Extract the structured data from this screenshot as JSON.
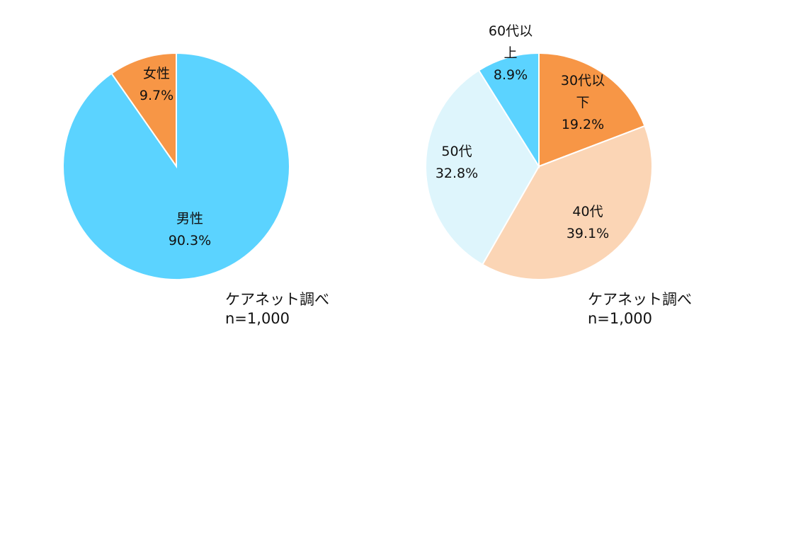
{
  "chart_data": [
    {
      "type": "pie",
      "name": "gender",
      "slices": [
        {
          "label": [
            "女性"
          ],
          "value": 9.7,
          "value_label": "9.7%",
          "color": "#f79646"
        },
        {
          "label": [
            "男性"
          ],
          "value": 90.3,
          "value_label": "90.3%",
          "color": "#5bd3ff"
        }
      ],
      "source": {
        "credit": "ケアネット調べ",
        "n": "n=1,000"
      }
    },
    {
      "type": "pie",
      "name": "age",
      "slices": [
        {
          "label": [
            "30代以",
            "下"
          ],
          "value": 19.2,
          "value_label": "19.2%",
          "color": "#f79646"
        },
        {
          "label": [
            "40代"
          ],
          "value": 39.1,
          "value_label": "39.1%",
          "color": "#fbd5b5"
        },
        {
          "label": [
            "50代"
          ],
          "value": 32.8,
          "value_label": "32.8%",
          "color": "#def5fc"
        },
        {
          "label": [
            "60代以",
            "上"
          ],
          "value": 8.9,
          "value_label": "8.9%",
          "color": "#5bd3ff"
        }
      ],
      "source": {
        "credit": "ケアネット調べ",
        "n": "n=1,000"
      }
    }
  ]
}
